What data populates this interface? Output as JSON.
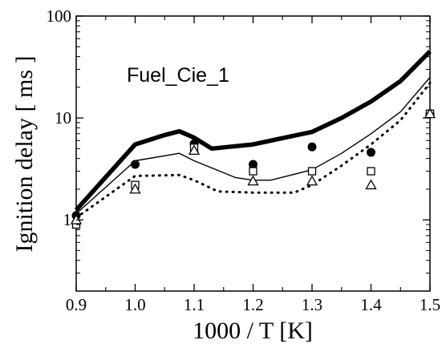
{
  "chart_data": {
    "type": "line",
    "title": "",
    "xlabel": "1000 / T [K]",
    "ylabel": "Ignition delay [ ms ]",
    "annotation": "Fuel_Cie_1",
    "xlim": [
      0.9,
      1.5
    ],
    "ylim": [
      0.2,
      100
    ],
    "yscale": "log",
    "x_ticks": [
      "0.9",
      "1.0",
      "1.1",
      "1.2",
      "1.3",
      "1.4",
      "1.5"
    ],
    "x_tick_values": [
      0.9,
      1.0,
      1.1,
      1.2,
      1.3,
      1.4,
      1.5
    ],
    "y_ticks": [
      "1",
      "10",
      "100"
    ],
    "y_tick_values": [
      1,
      10,
      100
    ],
    "grid": false,
    "legend": "none",
    "series": [
      {
        "style": "thick-solid",
        "color": "#000000",
        "x": [
          0.9,
          1.0,
          1.05,
          1.075,
          1.1,
          1.13,
          1.2,
          1.3,
          1.35,
          1.4,
          1.45,
          1.5
        ],
        "y": [
          1.25,
          5.5,
          6.8,
          7.4,
          6.4,
          5.0,
          5.5,
          7.3,
          10.0,
          14.5,
          23.0,
          45.0
        ]
      },
      {
        "style": "thin-solid",
        "color": "#000000",
        "x": [
          0.9,
          1.0,
          1.075,
          1.1,
          1.17,
          1.2,
          1.23,
          1.3,
          1.35,
          1.4,
          1.45,
          1.5
        ],
        "y": [
          1.15,
          3.8,
          4.5,
          3.8,
          2.6,
          2.45,
          2.45,
          3.1,
          4.5,
          7.0,
          11.5,
          25.0
        ]
      },
      {
        "style": "dotted",
        "color": "#000000",
        "x": [
          0.9,
          1.0,
          1.075,
          1.1,
          1.14,
          1.2,
          1.27,
          1.3,
          1.35,
          1.4,
          1.45,
          1.5
        ],
        "y": [
          1.05,
          2.7,
          2.75,
          2.45,
          1.9,
          1.85,
          1.85,
          2.2,
          3.4,
          5.5,
          9.5,
          22.0
        ]
      },
      {
        "style": "filled-circle",
        "color": "#000000",
        "x": [
          0.9,
          1.0,
          1.1,
          1.2,
          1.3,
          1.4,
          1.5
        ],
        "y": [
          1.1,
          3.5,
          5.6,
          3.5,
          5.2,
          4.6,
          11.0
        ]
      },
      {
        "style": "open-square",
        "color": "#000000",
        "x": [
          0.9,
          1.0,
          1.1,
          1.2,
          1.3,
          1.4,
          1.5
        ],
        "y": [
          0.9,
          2.2,
          5.1,
          3.0,
          3.0,
          3.0,
          11.0
        ]
      },
      {
        "style": "open-triangle",
        "color": "#000000",
        "x": [
          0.9,
          1.0,
          1.1,
          1.2,
          1.3,
          1.4,
          1.5
        ],
        "y": [
          1.0,
          2.0,
          4.8,
          2.4,
          2.4,
          2.2,
          11.0
        ]
      }
    ]
  }
}
